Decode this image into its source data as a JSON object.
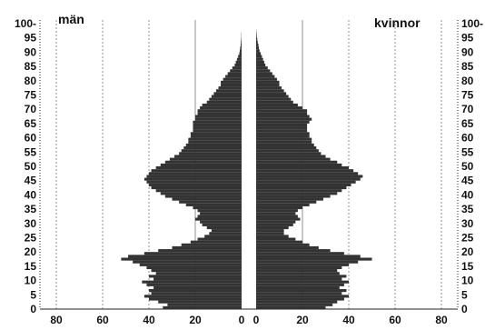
{
  "chart_data": {
    "type": "bar",
    "orientation": "horizontal-pyramid",
    "left_label": "män",
    "right_label": "kvinnor",
    "age_ticks": [
      "0",
      "5",
      "10",
      "15",
      "20",
      "25",
      "30",
      "35",
      "40",
      "45",
      "50",
      "55",
      "60",
      "65",
      "70",
      "75",
      "80",
      "85",
      "90",
      "95",
      "100-"
    ],
    "count_ticks": [
      "80",
      "60",
      "40",
      "20",
      "0"
    ],
    "xlim": [
      0,
      80
    ],
    "ylim": [
      0,
      100
    ],
    "grid": true,
    "bar_color": "#333333",
    "series": [
      {
        "side": "left",
        "values": [
          34,
          32,
          36,
          40,
          42,
          39,
          40,
          38,
          41,
          43,
          38,
          40,
          37,
          39,
          41,
          44,
          47,
          52,
          49,
          42,
          36,
          30,
          26,
          22,
          19,
          16,
          14,
          13,
          15,
          17,
          18,
          20,
          19,
          18,
          19,
          21,
          24,
          27,
          30,
          33,
          35,
          37,
          39,
          40,
          41,
          42,
          41,
          40,
          39,
          37,
          35,
          33,
          31,
          29,
          27,
          26,
          25,
          24,
          23,
          23,
          22,
          22,
          21,
          21,
          21,
          21,
          20,
          20,
          19,
          19,
          18,
          17,
          15,
          14,
          13,
          12,
          11,
          10,
          9,
          9,
          8,
          7,
          6,
          5,
          4,
          3,
          2.5,
          2,
          1.5,
          1,
          0.8,
          0.6,
          0.4,
          0.3,
          0.2,
          0.1,
          0.1,
          0,
          0,
          0
        ]
      },
      {
        "side": "right",
        "values": [
          30,
          33,
          35,
          38,
          40,
          37,
          39,
          36,
          38,
          40,
          37,
          39,
          36,
          35,
          37,
          40,
          44,
          50,
          45,
          38,
          32,
          27,
          23,
          20,
          17,
          14,
          12,
          12,
          14,
          16,
          17,
          19,
          18,
          17,
          18,
          20,
          23,
          26,
          29,
          32,
          35,
          37,
          39,
          41,
          43,
          45,
          46,
          44,
          42,
          40,
          37,
          35,
          32,
          30,
          28,
          27,
          26,
          25,
          24,
          24,
          23,
          23,
          22,
          22,
          22,
          23,
          24,
          23,
          22,
          22,
          20,
          18,
          16,
          15,
          14,
          13,
          12,
          11,
          10,
          10,
          9,
          8,
          7,
          6,
          5,
          4,
          3.5,
          3,
          2.5,
          2,
          1.5,
          1.2,
          1,
          0.7,
          0.5,
          0.3,
          0.2,
          0.1,
          0,
          0
        ]
      }
    ]
  }
}
